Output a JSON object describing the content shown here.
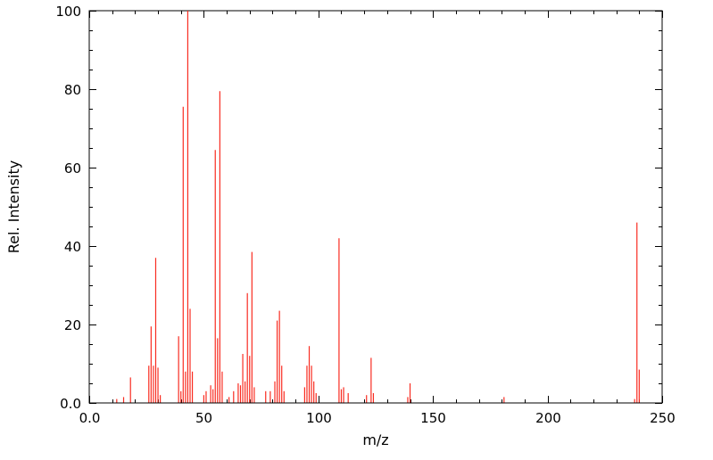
{
  "chart_data": {
    "type": "bar",
    "subtype": "mass-spectrum-stick-plot",
    "title": "",
    "xlabel": "m/z",
    "ylabel": "Rel. Intensity",
    "xlim": [
      0,
      250
    ],
    "ylim": [
      0,
      100
    ],
    "grid": false,
    "legend": false,
    "background_color": "#ffffff",
    "axis_color": "#000000",
    "stick_color": "#f92c21",
    "x_major_ticks": [
      0,
      50,
      100,
      150,
      200,
      250
    ],
    "x_major_tick_labels": [
      "0.0",
      "50",
      "100",
      "150",
      "200",
      "250"
    ],
    "x_minor_tick_step": 10,
    "y_major_ticks": [
      0,
      20,
      40,
      60,
      80,
      100
    ],
    "y_major_tick_labels": [
      "0.0",
      "20",
      "40",
      "60",
      "80",
      "100"
    ],
    "y_minor_tick_step": 5,
    "peaks": [
      {
        "mz": 12,
        "intensity": 1
      },
      {
        "mz": 15,
        "intensity": 1.5
      },
      {
        "mz": 18,
        "intensity": 6.5
      },
      {
        "mz": 26,
        "intensity": 9.5
      },
      {
        "mz": 27,
        "intensity": 19.5
      },
      {
        "mz": 28,
        "intensity": 9.5
      },
      {
        "mz": 29,
        "intensity": 37
      },
      {
        "mz": 30,
        "intensity": 9
      },
      {
        "mz": 31,
        "intensity": 2
      },
      {
        "mz": 39,
        "intensity": 17
      },
      {
        "mz": 40,
        "intensity": 3
      },
      {
        "mz": 41,
        "intensity": 75.5
      },
      {
        "mz": 42,
        "intensity": 8
      },
      {
        "mz": 43,
        "intensity": 100
      },
      {
        "mz": 44,
        "intensity": 24
      },
      {
        "mz": 45,
        "intensity": 8
      },
      {
        "mz": 50,
        "intensity": 2
      },
      {
        "mz": 51,
        "intensity": 3
      },
      {
        "mz": 53,
        "intensity": 4.5
      },
      {
        "mz": 54,
        "intensity": 3.5
      },
      {
        "mz": 55,
        "intensity": 64.5
      },
      {
        "mz": 56,
        "intensity": 16.5
      },
      {
        "mz": 57,
        "intensity": 79.5
      },
      {
        "mz": 58,
        "intensity": 8
      },
      {
        "mz": 61,
        "intensity": 1.5
      },
      {
        "mz": 63,
        "intensity": 3
      },
      {
        "mz": 65,
        "intensity": 5
      },
      {
        "mz": 66,
        "intensity": 4.5
      },
      {
        "mz": 67,
        "intensity": 12.5
      },
      {
        "mz": 68,
        "intensity": 5.5
      },
      {
        "mz": 69,
        "intensity": 28
      },
      {
        "mz": 70,
        "intensity": 12
      },
      {
        "mz": 71,
        "intensity": 38.5
      },
      {
        "mz": 72,
        "intensity": 4
      },
      {
        "mz": 77,
        "intensity": 3
      },
      {
        "mz": 79,
        "intensity": 3
      },
      {
        "mz": 81,
        "intensity": 5.5
      },
      {
        "mz": 82,
        "intensity": 21
      },
      {
        "mz": 83,
        "intensity": 23.5
      },
      {
        "mz": 84,
        "intensity": 9.5
      },
      {
        "mz": 85,
        "intensity": 3
      },
      {
        "mz": 94,
        "intensity": 4
      },
      {
        "mz": 95,
        "intensity": 9.5
      },
      {
        "mz": 96,
        "intensity": 14.5
      },
      {
        "mz": 97,
        "intensity": 9.5
      },
      {
        "mz": 98,
        "intensity": 5.5
      },
      {
        "mz": 99,
        "intensity": 2.5
      },
      {
        "mz": 109,
        "intensity": 42
      },
      {
        "mz": 110,
        "intensity": 3.5
      },
      {
        "mz": 111,
        "intensity": 4
      },
      {
        "mz": 113,
        "intensity": 2.5
      },
      {
        "mz": 121,
        "intensity": 2
      },
      {
        "mz": 123,
        "intensity": 11.5
      },
      {
        "mz": 124,
        "intensity": 2.5
      },
      {
        "mz": 139,
        "intensity": 1.5
      },
      {
        "mz": 140,
        "intensity": 5
      },
      {
        "mz": 181,
        "intensity": 1.5
      },
      {
        "mz": 238,
        "intensity": 1
      },
      {
        "mz": 239,
        "intensity": 46
      },
      {
        "mz": 240,
        "intensity": 8.5
      }
    ]
  }
}
